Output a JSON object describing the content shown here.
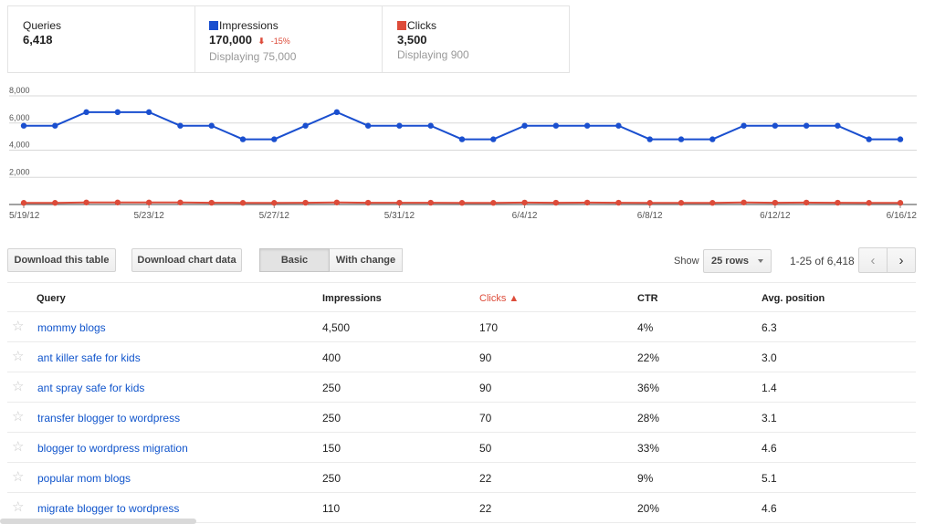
{
  "summary": {
    "queries": {
      "label": "Queries",
      "value": "6,418"
    },
    "impressions": {
      "label": "Impressions",
      "value": "170,000",
      "change": "-15%",
      "displaying": "Displaying 75,000",
      "color": "#1a4fcf"
    },
    "clicks": {
      "label": "Clicks",
      "value": "3,500",
      "displaying": "Displaying 900",
      "color": "#dd4b39"
    }
  },
  "chart_data": {
    "type": "line",
    "y_tick_labels": [
      "8,000",
      "6,000",
      "4,000",
      "2,000"
    ],
    "ylim": [
      0,
      8000
    ],
    "x_tick_labels": [
      "5/19/12",
      "5/23/12",
      "5/27/12",
      "5/31/12",
      "6/4/12",
      "6/8/12",
      "6/12/12",
      "6/16/12"
    ],
    "x_points": 29,
    "grid": true,
    "series": [
      {
        "name": "Impressions",
        "color": "#1a4fcf",
        "values": [
          5800,
          5800,
          6800,
          6800,
          6800,
          5800,
          5800,
          4800,
          4800,
          5800,
          6800,
          5800,
          5800,
          5800,
          4800,
          4800,
          5800,
          5800,
          5800,
          5800,
          4800,
          4800,
          4800,
          5800,
          5800,
          5800,
          5800,
          4800,
          4800
        ]
      },
      {
        "name": "Clicks",
        "color": "#dd4b39",
        "values": [
          120,
          120,
          150,
          150,
          150,
          150,
          130,
          120,
          120,
          130,
          150,
          130,
          130,
          130,
          120,
          120,
          140,
          130,
          140,
          130,
          120,
          120,
          120,
          150,
          130,
          140,
          130,
          120,
          120
        ]
      }
    ]
  },
  "toolbar": {
    "download_table": "Download this table",
    "download_chart": "Download chart data",
    "basic": "Basic",
    "with_change": "With change",
    "show": "Show",
    "rows": "25 rows",
    "range": "1-25 of 6,418",
    "prev_icon": "‹",
    "next_icon": "›"
  },
  "table": {
    "headers": {
      "query": "Query",
      "impressions": "Impressions",
      "clicks": "Clicks ▲",
      "ctr": "CTR",
      "position": "Avg. position"
    },
    "rows": [
      {
        "query": "mommy blogs",
        "impressions": "4,500",
        "clicks": "170",
        "ctr": "4%",
        "position": "6.3"
      },
      {
        "query": "ant killer safe for kids",
        "impressions": "400",
        "clicks": "90",
        "ctr": "22%",
        "position": "3.0"
      },
      {
        "query": "ant spray safe for kids",
        "impressions": "250",
        "clicks": "90",
        "ctr": "36%",
        "position": "1.4"
      },
      {
        "query": "transfer blogger to wordpress",
        "impressions": "250",
        "clicks": "70",
        "ctr": "28%",
        "position": "3.1"
      },
      {
        "query": "blogger to wordpress migration",
        "impressions": "150",
        "clicks": "50",
        "ctr": "33%",
        "position": "4.6"
      },
      {
        "query": "popular mom blogs",
        "impressions": "250",
        "clicks": "22",
        "ctr": "9%",
        "position": "5.1"
      },
      {
        "query": "migrate blogger to wordpress",
        "impressions": "110",
        "clicks": "22",
        "ctr": "20%",
        "position": "4.6"
      }
    ]
  }
}
